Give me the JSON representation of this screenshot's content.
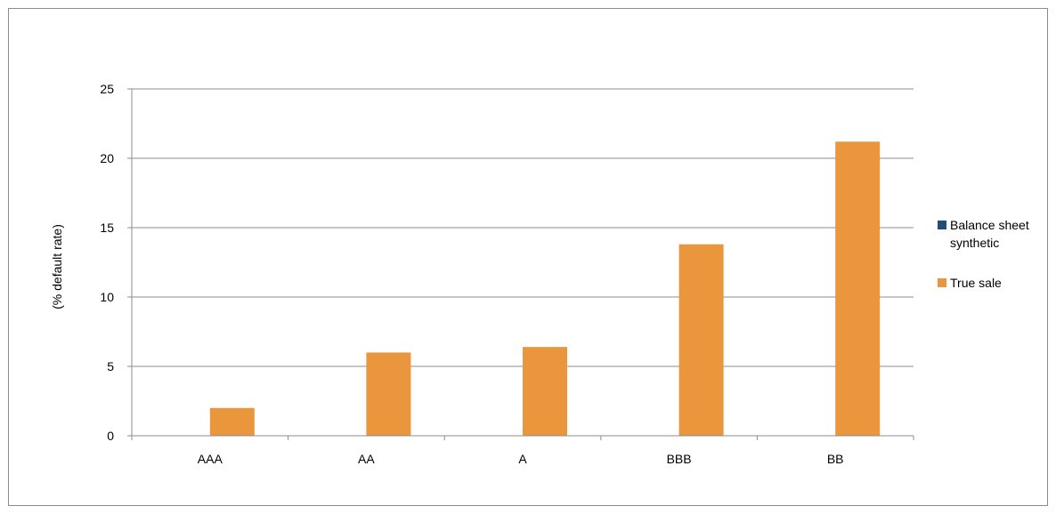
{
  "chart_data": {
    "type": "bar",
    "title": "",
    "xlabel": "",
    "ylabel": "(% default rate)",
    "categories": [
      "AAA",
      "AA",
      "A",
      "BBB",
      "BB"
    ],
    "series": [
      {
        "name": "Balance sheet synthetic",
        "color": "#1f4e79",
        "values": [
          0,
          0,
          0,
          0,
          0
        ]
      },
      {
        "name": "True sale",
        "color": "#ea963c",
        "values": [
          2.0,
          6.0,
          6.4,
          13.8,
          21.2
        ]
      }
    ],
    "ylim": [
      0,
      25
    ],
    "yticks": [
      0,
      5,
      10,
      15,
      20,
      25
    ],
    "grid": true,
    "legend_position": "right",
    "legend_lines": [
      [
        "Balance sheet",
        "synthetic"
      ],
      [
        "True sale"
      ]
    ]
  }
}
